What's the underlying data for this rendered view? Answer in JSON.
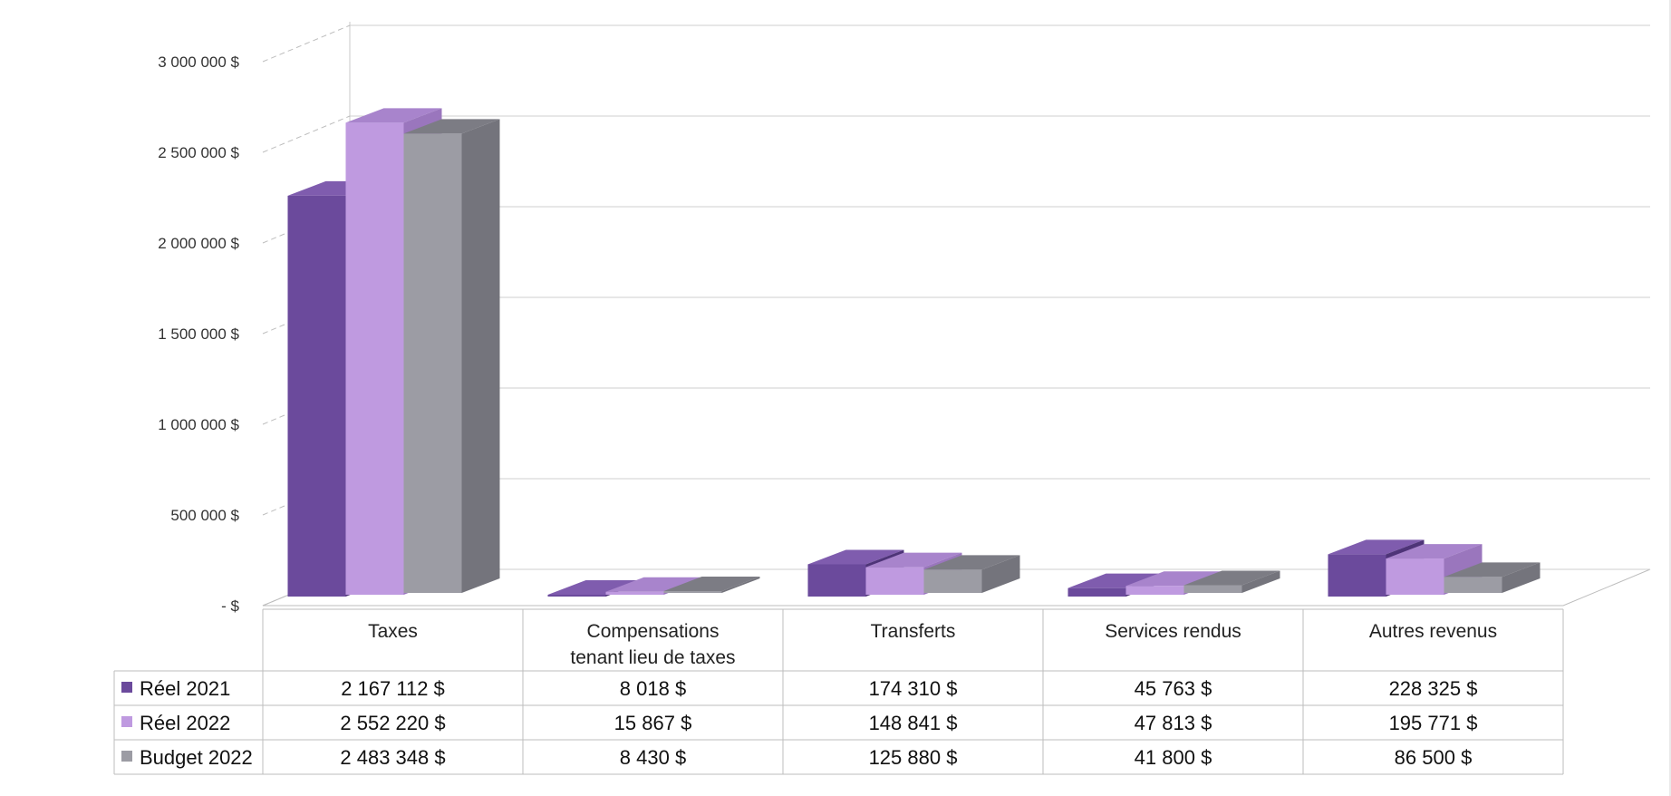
{
  "chart_data": {
    "type": "bar",
    "categories": [
      "Taxes",
      "Compensations tenant lieu de taxes",
      "Transferts",
      "Services rendus",
      "Autres revenus"
    ],
    "category_lines": [
      [
        "Taxes"
      ],
      [
        "Compensations",
        "tenant lieu de taxes"
      ],
      [
        "Transferts"
      ],
      [
        "Services rendus"
      ],
      [
        "Autres revenus"
      ]
    ],
    "series": [
      {
        "name": "Réel 2021",
        "values": [
          2167112,
          8018,
          174310,
          45763,
          228325
        ],
        "labels": [
          "2 167 112  $",
          "8 018  $",
          "174 310  $",
          "45 763  $",
          "228 325  $"
        ]
      },
      {
        "name": "Réel 2022",
        "values": [
          2552220,
          15867,
          148841,
          47813,
          195771
        ],
        "labels": [
          "2 552 220  $",
          "15 867  $",
          "148 841  $",
          "47 813  $",
          "195 771  $"
        ]
      },
      {
        "name": "Budget 2022",
        "values": [
          2483348,
          8430,
          125880,
          41800,
          86500
        ],
        "labels": [
          "2 483 348  $",
          "8 430  $",
          "125 880  $",
          "41 800  $",
          "86 500  $"
        ]
      }
    ],
    "y_ticks": [
      0,
      500000,
      1000000,
      1500000,
      2000000,
      2500000,
      3000000
    ],
    "y_tick_labels": [
      "-  $",
      "500 000  $",
      "1 000 000  $",
      "1 500 000  $",
      "2 000 000  $",
      "2 500 000  $",
      "3 000 000  $"
    ],
    "ylim": [
      0,
      3000000
    ],
    "grid": true,
    "legend": "data-table",
    "colors": [
      "#6b4a9c",
      "#bf9ae0",
      "#9c9ca4"
    ],
    "colors_side": [
      "#4e3478",
      "#9a76bd",
      "#74747c"
    ],
    "colors_top": [
      "#7f5cae",
      "#a884cc",
      "#7c7c84"
    ]
  }
}
